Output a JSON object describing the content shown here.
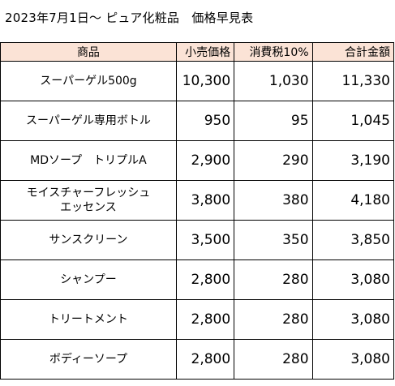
{
  "title": "2023年7月1日～ ピュア化粧品　価格早見表",
  "colors": {
    "header_background": "#fbe3d6",
    "border": "#000000"
  },
  "table": {
    "headers": [
      "商品",
      "小売価格",
      "消費税10%",
      "合計金額"
    ],
    "rows": [
      {
        "name_lines": [
          "スーパーゲル500g"
        ],
        "retail": "10,300",
        "tax": "1,030",
        "total": "11,330"
      },
      {
        "name_lines": [
          "スーパーゲル専用ボトル"
        ],
        "retail": "950",
        "tax": "95",
        "total": "1,045"
      },
      {
        "name_lines": [
          "MDソープ　トリプルA"
        ],
        "retail": "2,900",
        "tax": "290",
        "total": "3,190"
      },
      {
        "name_lines": [
          "モイスチャーフレッシュ",
          "エッセンス"
        ],
        "retail": "3,800",
        "tax": "380",
        "total": "4,180"
      },
      {
        "name_lines": [
          "サンスクリーン"
        ],
        "retail": "3,500",
        "tax": "350",
        "total": "3,850"
      },
      {
        "name_lines": [
          "シャンプー"
        ],
        "retail": "2,800",
        "tax": "280",
        "total": "3,080"
      },
      {
        "name_lines": [
          "トリートメント"
        ],
        "retail": "2,800",
        "tax": "280",
        "total": "3,080"
      },
      {
        "name_lines": [
          "ボディーソープ"
        ],
        "retail": "2,800",
        "tax": "280",
        "total": "3,080"
      }
    ]
  }
}
